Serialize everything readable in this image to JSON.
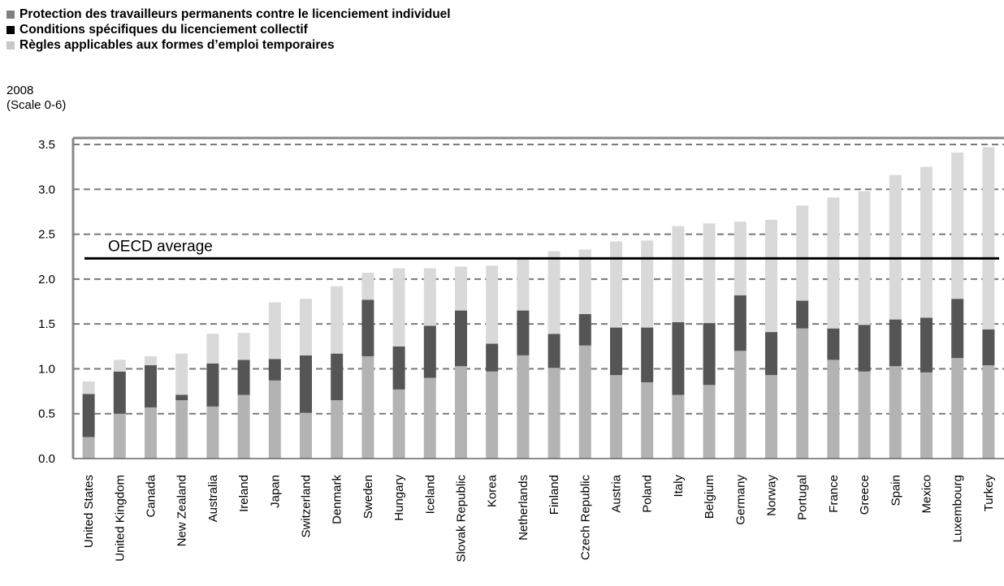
{
  "chart_data": {
    "type": "bar",
    "stacked": true,
    "legend": [
      {
        "label": "Protection des travailleurs permanents contre le licenciement individuel",
        "color": "#7f7f7f"
      },
      {
        "label": "Conditions spécifiques du licenciement collectif",
        "color": "#000000"
      },
      {
        "label": "Règles applicables aux formes d’emploi temporaires",
        "color": "#c8c8c8"
      }
    ],
    "legend_position": "top-left",
    "year_label": "2008",
    "scale_label": "(Scale 0-6)",
    "ylim": [
      0,
      3.5
    ],
    "yticks": [
      "0.0",
      "0.5",
      "1.0",
      "1.5",
      "2.0",
      "2.5",
      "3.0",
      "3.5"
    ],
    "grid": "dashed horizontal",
    "categories": [
      "United States",
      "United Kingdom",
      "Canada",
      "New Zealand",
      "Australia",
      "Ireland",
      "Japan",
      "Switzerland",
      "Denmark",
      "Sweden",
      "Hungary",
      "Iceland",
      "Slovak Republic",
      "Korea",
      "Netherlands",
      "Finland",
      "Czech Republic",
      "Austria",
      "Poland",
      "Italy",
      "Belgium",
      "Germany",
      "Norway",
      "Portugal",
      "France",
      "Greece",
      "Spain",
      "Mexico",
      "Luxembourg",
      "Turkey"
    ],
    "series": [
      {
        "color": "#b3b3b3",
        "values": [
          0.24,
          0.5,
          0.57,
          0.65,
          0.58,
          0.71,
          0.87,
          0.51,
          0.65,
          1.14,
          0.77,
          0.9,
          1.03,
          0.97,
          1.15,
          1.01,
          1.26,
          0.93,
          0.85,
          0.71,
          0.82,
          1.2,
          0.93,
          1.45,
          1.1,
          0.97,
          1.03,
          0.96,
          1.12,
          1.04
        ]
      },
      {
        "color": "#555555",
        "values": [
          0.48,
          0.47,
          0.47,
          0.06,
          0.48,
          0.39,
          0.24,
          0.64,
          0.52,
          0.63,
          0.48,
          0.58,
          0.62,
          0.31,
          0.5,
          0.38,
          0.35,
          0.53,
          0.61,
          0.81,
          0.69,
          0.62,
          0.48,
          0.31,
          0.35,
          0.52,
          0.52,
          0.61,
          0.66,
          0.4
        ]
      },
      {
        "color": "#d9d9d9",
        "values": [
          0.14,
          0.13,
          0.1,
          0.46,
          0.33,
          0.3,
          0.63,
          0.63,
          0.75,
          0.3,
          0.87,
          0.64,
          0.49,
          0.87,
          0.57,
          0.92,
          0.72,
          0.96,
          0.97,
          1.07,
          1.11,
          0.82,
          1.25,
          1.06,
          1.46,
          1.49,
          1.61,
          1.68,
          1.63,
          2.03
        ]
      }
    ],
    "annotation": {
      "label": "OECD average",
      "value": 2.23
    }
  }
}
